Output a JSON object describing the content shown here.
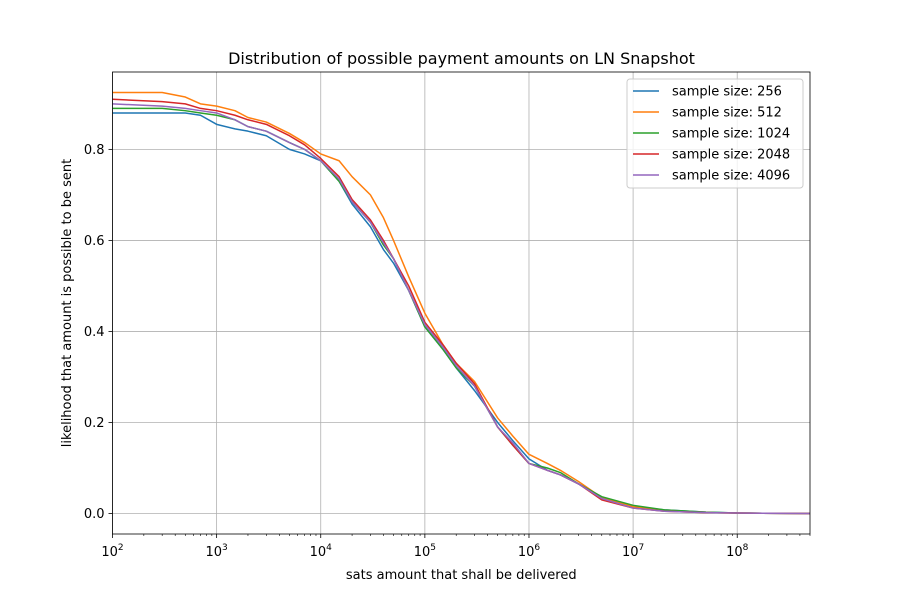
{
  "chart_data": {
    "type": "line",
    "title": "Distribution of possible payment amounts on LN Snapshot",
    "xlabel": "sats amount that shall be delivered",
    "ylabel": "likelihood that amount is possible to be sent",
    "xscale": "log",
    "xlim": [
      100,
      500000000
    ],
    "ylim": [
      -0.045,
      0.97
    ],
    "grid": true,
    "legend_position": "top-right",
    "x_ticks": [
      {
        "value": 100,
        "base": "10",
        "exp": "2"
      },
      {
        "value": 1000,
        "base": "10",
        "exp": "3"
      },
      {
        "value": 10000,
        "base": "10",
        "exp": "4"
      },
      {
        "value": 100000,
        "base": "10",
        "exp": "5"
      },
      {
        "value": 1000000,
        "base": "10",
        "exp": "6"
      },
      {
        "value": 10000000,
        "base": "10",
        "exp": "7"
      },
      {
        "value": 100000000,
        "base": "10",
        "exp": "8"
      }
    ],
    "y_ticks": [
      {
        "value": 0.0,
        "label": "0.0"
      },
      {
        "value": 0.2,
        "label": "0.2"
      },
      {
        "value": 0.4,
        "label": "0.4"
      },
      {
        "value": 0.6,
        "label": "0.6"
      },
      {
        "value": 0.8,
        "label": "0.8"
      }
    ],
    "series": [
      {
        "name": "sample size: 256",
        "color": "#1f77b4",
        "x": [
          100,
          500,
          700,
          1000,
          1500,
          2000,
          3000,
          5000,
          7000,
          10000,
          15000,
          20000,
          30000,
          40000,
          50000,
          70000,
          100000,
          150000,
          200000,
          300000,
          500000,
          700000,
          1000000,
          1500000,
          2000000,
          3000000,
          5000000,
          10000000,
          20000000,
          50000000,
          100000000,
          500000000
        ],
        "y": [
          0.88,
          0.88,
          0.875,
          0.855,
          0.845,
          0.84,
          0.83,
          0.8,
          0.79,
          0.775,
          0.73,
          0.68,
          0.63,
          0.58,
          0.55,
          0.49,
          0.41,
          0.36,
          0.32,
          0.27,
          0.2,
          0.16,
          0.12,
          0.095,
          0.085,
          0.065,
          0.035,
          0.015,
          0.008,
          0.003,
          0.001,
          0.0
        ]
      },
      {
        "name": "sample size: 512",
        "color": "#ff7f0e",
        "x": [
          100,
          300,
          500,
          700,
          1000,
          1500,
          2000,
          3000,
          5000,
          7000,
          10000,
          15000,
          20000,
          30000,
          40000,
          50000,
          70000,
          100000,
          150000,
          200000,
          300000,
          500000,
          700000,
          1000000,
          1500000,
          2000000,
          3000000,
          5000000,
          10000000,
          20000000,
          50000000,
          100000000,
          500000000
        ],
        "y": [
          0.925,
          0.925,
          0.915,
          0.9,
          0.895,
          0.885,
          0.87,
          0.86,
          0.835,
          0.815,
          0.79,
          0.775,
          0.74,
          0.7,
          0.65,
          0.6,
          0.52,
          0.44,
          0.37,
          0.33,
          0.29,
          0.21,
          0.17,
          0.13,
          0.11,
          0.095,
          0.07,
          0.035,
          0.015,
          0.007,
          0.002,
          0.001,
          0.0
        ]
      },
      {
        "name": "sample size: 1024",
        "color": "#2ca02c",
        "x": [
          100,
          300,
          500,
          700,
          1000,
          1500,
          2000,
          3000,
          5000,
          7000,
          10000,
          15000,
          20000,
          30000,
          40000,
          50000,
          70000,
          100000,
          150000,
          200000,
          300000,
          500000,
          700000,
          1000000,
          1500000,
          2000000,
          3000000,
          5000000,
          10000000,
          20000000,
          50000000,
          100000000,
          500000000
        ],
        "y": [
          0.89,
          0.89,
          0.885,
          0.88,
          0.875,
          0.865,
          0.85,
          0.84,
          0.815,
          0.8,
          0.775,
          0.73,
          0.685,
          0.64,
          0.59,
          0.56,
          0.49,
          0.41,
          0.36,
          0.32,
          0.28,
          0.19,
          0.15,
          0.11,
          0.1,
          0.09,
          0.065,
          0.037,
          0.018,
          0.008,
          0.003,
          0.001,
          0.0
        ]
      },
      {
        "name": "sample size: 2048",
        "color": "#d62728",
        "x": [
          100,
          300,
          500,
          700,
          1000,
          1500,
          2000,
          3000,
          5000,
          7000,
          10000,
          15000,
          20000,
          30000,
          40000,
          50000,
          70000,
          100000,
          150000,
          200000,
          300000,
          500000,
          700000,
          1000000,
          1500000,
          2000000,
          3000000,
          5000000,
          10000000,
          20000000,
          50000000,
          100000000,
          500000000
        ],
        "y": [
          0.91,
          0.905,
          0.9,
          0.89,
          0.885,
          0.875,
          0.865,
          0.855,
          0.83,
          0.81,
          0.78,
          0.74,
          0.69,
          0.645,
          0.6,
          0.56,
          0.5,
          0.42,
          0.37,
          0.33,
          0.285,
          0.19,
          0.15,
          0.11,
          0.095,
          0.085,
          0.065,
          0.03,
          0.012,
          0.005,
          0.002,
          0.001,
          0.0
        ]
      },
      {
        "name": "sample size: 4096",
        "color": "#9467bd",
        "x": [
          100,
          300,
          500,
          700,
          1000,
          1500,
          2000,
          3000,
          5000,
          7000,
          10000,
          15000,
          20000,
          30000,
          40000,
          50000,
          70000,
          100000,
          150000,
          200000,
          300000,
          500000,
          700000,
          1000000,
          1500000,
          2000000,
          3000000,
          5000000,
          10000000,
          20000000,
          50000000,
          100000000,
          500000000
        ],
        "y": [
          0.9,
          0.895,
          0.89,
          0.885,
          0.88,
          0.865,
          0.85,
          0.84,
          0.815,
          0.8,
          0.775,
          0.735,
          0.685,
          0.64,
          0.595,
          0.56,
          0.49,
          0.415,
          0.365,
          0.325,
          0.28,
          0.19,
          0.155,
          0.11,
          0.095,
          0.085,
          0.065,
          0.033,
          0.012,
          0.005,
          0.002,
          0.001,
          0.0
        ]
      }
    ]
  }
}
